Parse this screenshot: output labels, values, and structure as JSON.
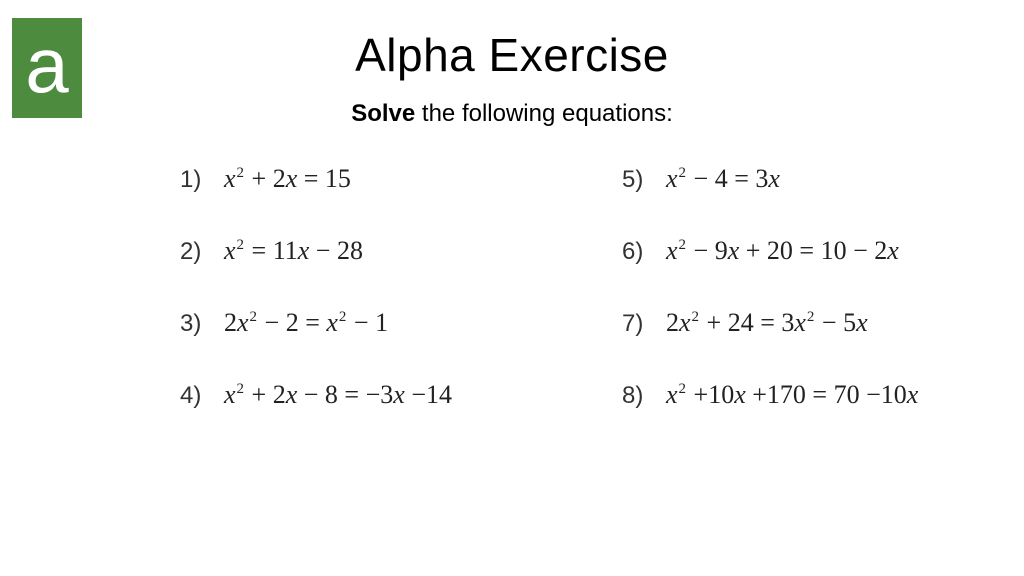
{
  "logo": {
    "letter": "a",
    "bg_color": "#4d8b3f",
    "fg_color": "#ffffff"
  },
  "title": "Alpha Exercise",
  "instruction_bold": "Solve",
  "instruction_rest": " the following equations:",
  "colors": {
    "background": "#ffffff",
    "text": "#000000",
    "eq_text": "#222222"
  },
  "typography": {
    "title_fontsize": 46,
    "instruction_fontsize": 24,
    "eq_fontsize": 26,
    "num_fontsize": 24
  },
  "equations_left": [
    {
      "n": "1)",
      "parts": [
        {
          "t": "var",
          "v": "x"
        },
        {
          "t": "sup",
          "v": "2"
        },
        {
          "t": "txt",
          "v": " + 2"
        },
        {
          "t": "var",
          "v": "x"
        },
        {
          "t": "txt",
          "v": " = 15"
        }
      ]
    },
    {
      "n": "2)",
      "parts": [
        {
          "t": "var",
          "v": "x"
        },
        {
          "t": "sup",
          "v": "2"
        },
        {
          "t": "txt",
          "v": " = 11"
        },
        {
          "t": "var",
          "v": "x"
        },
        {
          "t": "txt",
          "v": " − 28"
        }
      ]
    },
    {
      "n": "3)",
      "parts": [
        {
          "t": "txt",
          "v": "2"
        },
        {
          "t": "var",
          "v": "x"
        },
        {
          "t": "sup",
          "v": "2"
        },
        {
          "t": "txt",
          "v": " − 2 = "
        },
        {
          "t": "var",
          "v": "x"
        },
        {
          "t": "sup",
          "v": "2"
        },
        {
          "t": "txt",
          "v": " − 1"
        }
      ]
    },
    {
      "n": "4)",
      "parts": [
        {
          "t": "var",
          "v": "x"
        },
        {
          "t": "sup",
          "v": "2"
        },
        {
          "t": "txt",
          "v": " + 2"
        },
        {
          "t": "var",
          "v": "x"
        },
        {
          "t": "txt",
          "v": " − 8 = −3"
        },
        {
          "t": "var",
          "v": "x"
        },
        {
          "t": "txt",
          "v": " −14"
        }
      ]
    }
  ],
  "equations_right": [
    {
      "n": "5)",
      "parts": [
        {
          "t": "var",
          "v": "x"
        },
        {
          "t": "sup",
          "v": "2"
        },
        {
          "t": "txt",
          "v": " − 4 = 3"
        },
        {
          "t": "var",
          "v": "x"
        }
      ]
    },
    {
      "n": "6)",
      "parts": [
        {
          "t": "var",
          "v": "x"
        },
        {
          "t": "sup",
          "v": "2"
        },
        {
          "t": "txt",
          "v": " − 9"
        },
        {
          "t": "var",
          "v": "x"
        },
        {
          "t": "txt",
          "v": " + 20 = 10 − 2"
        },
        {
          "t": "var",
          "v": "x"
        }
      ]
    },
    {
      "n": "7)",
      "parts": [
        {
          "t": "txt",
          "v": "2"
        },
        {
          "t": "var",
          "v": "x"
        },
        {
          "t": "sup",
          "v": "2"
        },
        {
          "t": "txt",
          "v": " + 24 = 3"
        },
        {
          "t": "var",
          "v": "x"
        },
        {
          "t": "sup",
          "v": "2"
        },
        {
          "t": "txt",
          "v": " − 5"
        },
        {
          "t": "var",
          "v": "x"
        }
      ]
    },
    {
      "n": "8)",
      "parts": [
        {
          "t": "var",
          "v": "x"
        },
        {
          "t": "sup",
          "v": "2"
        },
        {
          "t": "txt",
          "v": " +10"
        },
        {
          "t": "var",
          "v": "x"
        },
        {
          "t": "txt",
          "v": " +170 = 70 −10"
        },
        {
          "t": "var",
          "v": "x"
        }
      ]
    }
  ]
}
